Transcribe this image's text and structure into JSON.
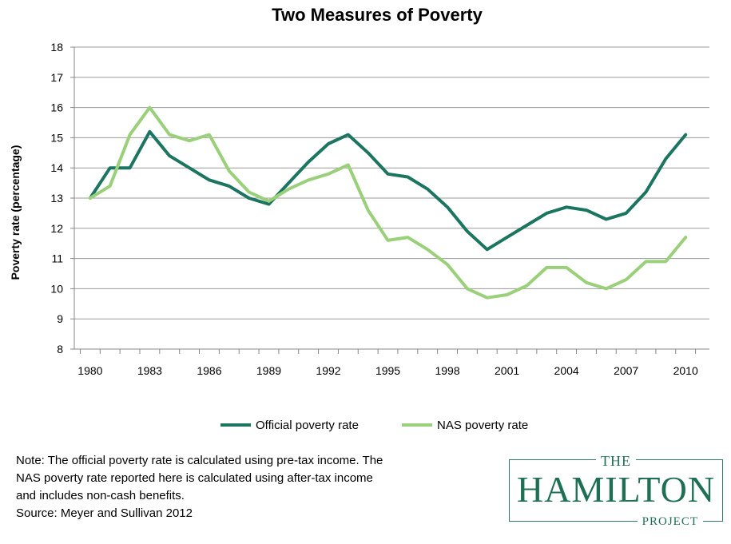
{
  "chart_data": {
    "type": "line",
    "title": "Two Measures of Poverty",
    "xlabel": "",
    "ylabel": "Poverty rate (percentage)",
    "ylim": [
      8,
      18
    ],
    "yticks": [
      "8",
      "9",
      "10",
      "11",
      "12",
      "13",
      "14",
      "15",
      "16",
      "17",
      "18"
    ],
    "xticks": [
      "1980",
      "1983",
      "1986",
      "1989",
      "1992",
      "1995",
      "1998",
      "2001",
      "2004",
      "2007",
      "2010"
    ],
    "x": [
      1980,
      1981,
      1982,
      1983,
      1984,
      1985,
      1986,
      1987,
      1988,
      1989,
      1990,
      1991,
      1992,
      1993,
      1994,
      1995,
      1996,
      1997,
      1998,
      1999,
      2000,
      2001,
      2002,
      2003,
      2004,
      2005,
      2006,
      2007,
      2008,
      2009,
      2010
    ],
    "grid": true,
    "legend_position": "bottom",
    "series": [
      {
        "name": "Official poverty rate",
        "color": "#1b7560",
        "values": [
          13.0,
          14.0,
          14.0,
          15.2,
          14.4,
          14.0,
          13.6,
          13.4,
          13.0,
          12.8,
          13.5,
          14.2,
          14.8,
          15.1,
          14.5,
          13.8,
          13.7,
          13.3,
          12.7,
          11.9,
          11.3,
          11.7,
          12.1,
          12.5,
          12.7,
          12.6,
          12.3,
          12.5,
          13.2,
          14.3,
          15.1
        ]
      },
      {
        "name": "NAS poverty rate",
        "color": "#9bd07a",
        "values": [
          13.0,
          13.4,
          15.1,
          16.0,
          15.1,
          14.9,
          15.1,
          13.9,
          13.2,
          12.9,
          13.3,
          13.6,
          13.8,
          14.1,
          12.6,
          11.6,
          11.7,
          11.3,
          10.8,
          10.0,
          9.7,
          9.8,
          10.1,
          10.7,
          10.7,
          10.2,
          10.0,
          10.3,
          10.9,
          10.9,
          11.7
        ]
      }
    ]
  },
  "note": {
    "lines": [
      "Note: The official poverty rate is calculated using pre-tax income. The",
      "NAS poverty rate reported here is calculated using after-tax income",
      "and includes non-cash benefits.",
      "Source: Meyer and Sullivan 2012"
    ]
  },
  "logo": {
    "top": "THE",
    "middle": "HAMILTON",
    "bottom": "PROJECT"
  }
}
